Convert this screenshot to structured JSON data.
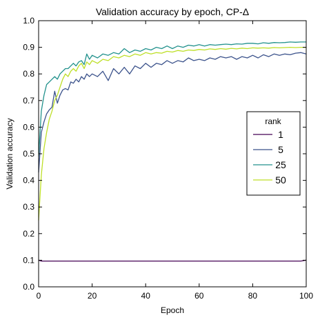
{
  "chart_data": {
    "type": "line",
    "title": "Validation accuracy by epoch, CP-Δ",
    "xlabel": "Epoch",
    "ylabel": "Validation accuracy",
    "xlim": [
      0,
      100
    ],
    "ylim": [
      0.0,
      1.0
    ],
    "xticks": [
      "0",
      "20",
      "40",
      "60",
      "80",
      "100"
    ],
    "yticks": [
      "0.0",
      "0.1",
      "0.2",
      "0.3",
      "0.4",
      "0.5",
      "0.6",
      "0.7",
      "0.8",
      "0.9",
      "1.0"
    ],
    "grid": false,
    "legend": {
      "title": "rank",
      "position": "center-right"
    },
    "series": [
      {
        "name": "1",
        "color": "#440154",
        "points": [
          [
            0,
            0.1
          ],
          [
            1,
            0.097
          ],
          [
            10,
            0.097
          ],
          [
            20,
            0.097
          ],
          [
            30,
            0.097
          ],
          [
            40,
            0.097
          ],
          [
            50,
            0.097
          ],
          [
            60,
            0.097
          ],
          [
            70,
            0.097
          ],
          [
            80,
            0.097
          ],
          [
            90,
            0.097
          ],
          [
            98,
            0.097
          ],
          [
            100,
            0.1
          ]
        ]
      },
      {
        "name": "5",
        "color": "#3b528b",
        "points": [
          [
            0,
            0.43
          ],
          [
            1,
            0.58
          ],
          [
            2,
            0.62
          ],
          [
            3,
            0.65
          ],
          [
            4,
            0.665
          ],
          [
            5,
            0.675
          ],
          [
            6,
            0.735
          ],
          [
            7,
            0.69
          ],
          [
            8,
            0.72
          ],
          [
            9,
            0.74
          ],
          [
            10,
            0.745
          ],
          [
            11,
            0.74
          ],
          [
            12,
            0.77
          ],
          [
            13,
            0.765
          ],
          [
            14,
            0.78
          ],
          [
            15,
            0.77
          ],
          [
            16,
            0.79
          ],
          [
            17,
            0.78
          ],
          [
            18,
            0.8
          ],
          [
            19,
            0.79
          ],
          [
            20,
            0.8
          ],
          [
            22,
            0.79
          ],
          [
            24,
            0.81
          ],
          [
            26,
            0.775
          ],
          [
            28,
            0.82
          ],
          [
            30,
            0.8
          ],
          [
            32,
            0.825
          ],
          [
            34,
            0.8
          ],
          [
            36,
            0.83
          ],
          [
            38,
            0.82
          ],
          [
            40,
            0.84
          ],
          [
            42,
            0.825
          ],
          [
            44,
            0.84
          ],
          [
            46,
            0.835
          ],
          [
            48,
            0.85
          ],
          [
            50,
            0.84
          ],
          [
            52,
            0.85
          ],
          [
            54,
            0.845
          ],
          [
            56,
            0.86
          ],
          [
            58,
            0.85
          ],
          [
            60,
            0.855
          ],
          [
            62,
            0.85
          ],
          [
            64,
            0.86
          ],
          [
            66,
            0.855
          ],
          [
            68,
            0.865
          ],
          [
            70,
            0.86
          ],
          [
            72,
            0.865
          ],
          [
            74,
            0.855
          ],
          [
            76,
            0.865
          ],
          [
            78,
            0.86
          ],
          [
            80,
            0.87
          ],
          [
            82,
            0.86
          ],
          [
            84,
            0.872
          ],
          [
            86,
            0.865
          ],
          [
            88,
            0.875
          ],
          [
            90,
            0.87
          ],
          [
            92,
            0.875
          ],
          [
            94,
            0.872
          ],
          [
            96,
            0.878
          ],
          [
            98,
            0.88
          ],
          [
            100,
            0.875
          ]
        ]
      },
      {
        "name": "25",
        "color": "#21918c",
        "points": [
          [
            0,
            0.49
          ],
          [
            1,
            0.66
          ],
          [
            2,
            0.72
          ],
          [
            3,
            0.76
          ],
          [
            4,
            0.77
          ],
          [
            5,
            0.78
          ],
          [
            6,
            0.79
          ],
          [
            7,
            0.78
          ],
          [
            8,
            0.8
          ],
          [
            9,
            0.81
          ],
          [
            10,
            0.82
          ],
          [
            11,
            0.82
          ],
          [
            12,
            0.83
          ],
          [
            13,
            0.84
          ],
          [
            14,
            0.83
          ],
          [
            15,
            0.845
          ],
          [
            16,
            0.85
          ],
          [
            17,
            0.835
          ],
          [
            18,
            0.875
          ],
          [
            19,
            0.855
          ],
          [
            20,
            0.87
          ],
          [
            22,
            0.86
          ],
          [
            24,
            0.875
          ],
          [
            26,
            0.87
          ],
          [
            28,
            0.88
          ],
          [
            30,
            0.875
          ],
          [
            32,
            0.895
          ],
          [
            34,
            0.88
          ],
          [
            36,
            0.89
          ],
          [
            38,
            0.885
          ],
          [
            40,
            0.895
          ],
          [
            42,
            0.89
          ],
          [
            44,
            0.9
          ],
          [
            46,
            0.895
          ],
          [
            48,
            0.905
          ],
          [
            50,
            0.895
          ],
          [
            52,
            0.905
          ],
          [
            54,
            0.9
          ],
          [
            56,
            0.908
          ],
          [
            58,
            0.905
          ],
          [
            60,
            0.91
          ],
          [
            62,
            0.905
          ],
          [
            64,
            0.91
          ],
          [
            66,
            0.908
          ],
          [
            68,
            0.91
          ],
          [
            70,
            0.912
          ],
          [
            72,
            0.91
          ],
          [
            74,
            0.913
          ],
          [
            76,
            0.912
          ],
          [
            78,
            0.915
          ],
          [
            80,
            0.915
          ],
          [
            82,
            0.913
          ],
          [
            84,
            0.917
          ],
          [
            86,
            0.915
          ],
          [
            88,
            0.918
          ],
          [
            90,
            0.917
          ],
          [
            92,
            0.918
          ],
          [
            94,
            0.92
          ],
          [
            96,
            0.919
          ],
          [
            98,
            0.92
          ],
          [
            100,
            0.92
          ]
        ]
      },
      {
        "name": "50",
        "color": "#bddf26",
        "points": [
          [
            0,
            0.25
          ],
          [
            1,
            0.42
          ],
          [
            2,
            0.52
          ],
          [
            3,
            0.58
          ],
          [
            4,
            0.63
          ],
          [
            5,
            0.66
          ],
          [
            6,
            0.7
          ],
          [
            7,
            0.72
          ],
          [
            8,
            0.75
          ],
          [
            9,
            0.78
          ],
          [
            10,
            0.8
          ],
          [
            11,
            0.79
          ],
          [
            12,
            0.81
          ],
          [
            13,
            0.82
          ],
          [
            14,
            0.81
          ],
          [
            15,
            0.83
          ],
          [
            16,
            0.84
          ],
          [
            17,
            0.82
          ],
          [
            18,
            0.845
          ],
          [
            19,
            0.835
          ],
          [
            20,
            0.85
          ],
          [
            22,
            0.84
          ],
          [
            24,
            0.855
          ],
          [
            26,
            0.85
          ],
          [
            28,
            0.865
          ],
          [
            30,
            0.86
          ],
          [
            32,
            0.87
          ],
          [
            34,
            0.865
          ],
          [
            36,
            0.875
          ],
          [
            38,
            0.87
          ],
          [
            40,
            0.88
          ],
          [
            42,
            0.875
          ],
          [
            44,
            0.88
          ],
          [
            46,
            0.878
          ],
          [
            48,
            0.885
          ],
          [
            50,
            0.882
          ],
          [
            52,
            0.888
          ],
          [
            54,
            0.885
          ],
          [
            56,
            0.89
          ],
          [
            58,
            0.888
          ],
          [
            60,
            0.892
          ],
          [
            62,
            0.89
          ],
          [
            64,
            0.894
          ],
          [
            66,
            0.892
          ],
          [
            68,
            0.895
          ],
          [
            70,
            0.893
          ],
          [
            72,
            0.896
          ],
          [
            74,
            0.894
          ],
          [
            76,
            0.897
          ],
          [
            78,
            0.895
          ],
          [
            80,
            0.898
          ],
          [
            82,
            0.897
          ],
          [
            84,
            0.898
          ],
          [
            86,
            0.897
          ],
          [
            88,
            0.899
          ],
          [
            90,
            0.898
          ],
          [
            92,
            0.899
          ],
          [
            94,
            0.9
          ],
          [
            96,
            0.899
          ],
          [
            98,
            0.9
          ],
          [
            100,
            0.9
          ]
        ]
      }
    ]
  }
}
